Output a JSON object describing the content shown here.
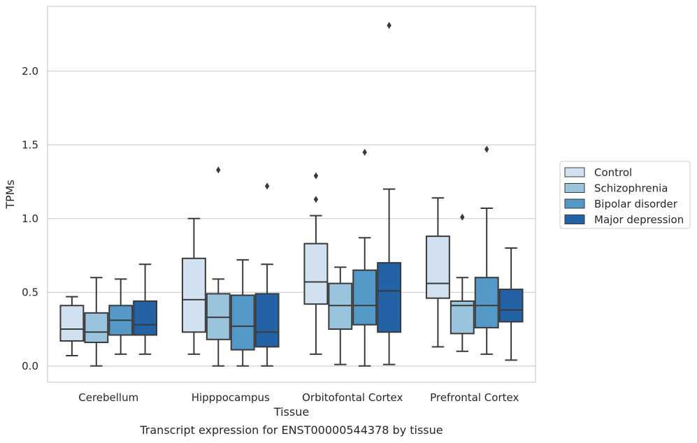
{
  "caption": "Transcript expression for ENST00000544378 by tissue",
  "chart_data": {
    "type": "box",
    "xlabel": "Tissue",
    "ylabel": "TPMs",
    "ylim": [
      -0.11,
      2.44
    ],
    "yticks": [
      0.0,
      0.5,
      1.0,
      1.5,
      2.0
    ],
    "ytick_labels": [
      "0.0",
      "0.5",
      "1.0",
      "1.5",
      "2.0"
    ],
    "grid": "horizontal",
    "legend_placement": "right",
    "categories": [
      "Cerebellum",
      "Hipppocampus",
      "Orbitofontal Cortex",
      "Prefrontal Cortex"
    ],
    "series": [
      {
        "name": "Control",
        "color": "#d1e1f0",
        "boxes": [
          {
            "whislo": 0.07,
            "q1": 0.17,
            "med": 0.25,
            "q3": 0.41,
            "whishi": 0.47,
            "fliers": []
          },
          {
            "whislo": 0.08,
            "q1": 0.23,
            "med": 0.45,
            "q3": 0.73,
            "whishi": 1.0,
            "fliers": []
          },
          {
            "whislo": 0.08,
            "q1": 0.42,
            "med": 0.57,
            "q3": 0.83,
            "whishi": 1.02,
            "fliers": [
              1.13,
              1.29
            ]
          },
          {
            "whislo": 0.13,
            "q1": 0.46,
            "med": 0.56,
            "q3": 0.88,
            "whishi": 1.14,
            "fliers": []
          }
        ]
      },
      {
        "name": "Schizophrenia",
        "color": "#9ac4de",
        "boxes": [
          {
            "whislo": 0.0,
            "q1": 0.16,
            "med": 0.23,
            "q3": 0.36,
            "whishi": 0.6,
            "fliers": []
          },
          {
            "whislo": 0.0,
            "q1": 0.18,
            "med": 0.33,
            "q3": 0.49,
            "whishi": 0.59,
            "fliers": [
              1.33
            ]
          },
          {
            "whislo": 0.01,
            "q1": 0.25,
            "med": 0.41,
            "q3": 0.56,
            "whishi": 0.67,
            "fliers": []
          },
          {
            "whislo": 0.1,
            "q1": 0.22,
            "med": 0.41,
            "q3": 0.44,
            "whishi": 0.6,
            "fliers": [
              1.01
            ]
          }
        ]
      },
      {
        "name": "Bipolar disorder",
        "color": "#5498c7",
        "boxes": [
          {
            "whislo": 0.08,
            "q1": 0.21,
            "med": 0.31,
            "q3": 0.41,
            "whishi": 0.59,
            "fliers": []
          },
          {
            "whislo": 0.0,
            "q1": 0.11,
            "med": 0.27,
            "q3": 0.48,
            "whishi": 0.72,
            "fliers": []
          },
          {
            "whislo": 0.0,
            "q1": 0.28,
            "med": 0.41,
            "q3": 0.65,
            "whishi": 0.87,
            "fliers": [
              1.45
            ]
          },
          {
            "whislo": 0.08,
            "q1": 0.26,
            "med": 0.41,
            "q3": 0.6,
            "whishi": 1.07,
            "fliers": [
              1.47
            ]
          }
        ]
      },
      {
        "name": "Major depression",
        "color": "#2362a4",
        "boxes": [
          {
            "whislo": 0.08,
            "q1": 0.21,
            "med": 0.28,
            "q3": 0.44,
            "whishi": 0.69,
            "fliers": []
          },
          {
            "whislo": 0.0,
            "q1": 0.13,
            "med": 0.23,
            "q3": 0.49,
            "whishi": 0.69,
            "fliers": [
              1.22
            ]
          },
          {
            "whislo": 0.01,
            "q1": 0.23,
            "med": 0.51,
            "q3": 0.7,
            "whishi": 1.2,
            "fliers": [
              2.31
            ]
          },
          {
            "whislo": 0.04,
            "q1": 0.3,
            "med": 0.38,
            "q3": 0.52,
            "whishi": 0.8,
            "fliers": []
          }
        ]
      }
    ]
  }
}
